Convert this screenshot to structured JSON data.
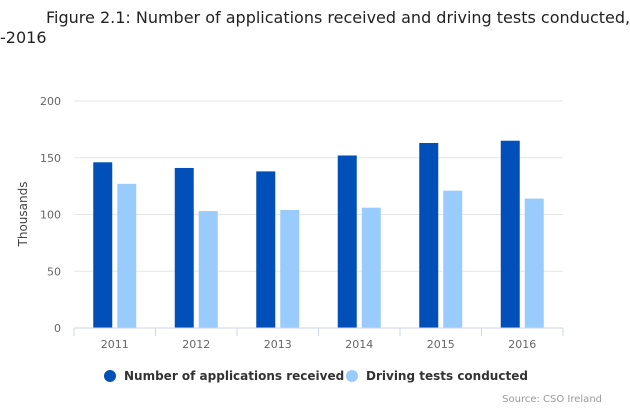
{
  "title_lines": [
    "Figure 2.1: Number of applications received and driving tests conducted,",
    "-2016"
  ],
  "source": "Source: CSO Ireland",
  "colors": {
    "applications": "#0150b9",
    "tests": "#99ccfc",
    "grid": "#e6e6e6",
    "axis_line": "#ccd6eb",
    "axis_text": "#666666"
  },
  "chart_data": {
    "type": "bar",
    "title": "Figure 2.1: Number of applications received and driving tests conducted, -2016",
    "xlabel": "",
    "ylabel": "Thousands",
    "ylim": [
      0,
      200
    ],
    "yticks": [
      0,
      50,
      100,
      150,
      200
    ],
    "grid": true,
    "legend_position": "bottom",
    "categories": [
      "2011",
      "2012",
      "2013",
      "2014",
      "2015",
      "2016"
    ],
    "series": [
      {
        "name": "Number of applications received",
        "color": "#0150b9",
        "values": [
          146,
          141,
          138,
          152,
          163,
          165
        ]
      },
      {
        "name": "Driving tests conducted",
        "color": "#99ccfc",
        "values": [
          127,
          103,
          104,
          106,
          121,
          114
        ]
      }
    ]
  }
}
